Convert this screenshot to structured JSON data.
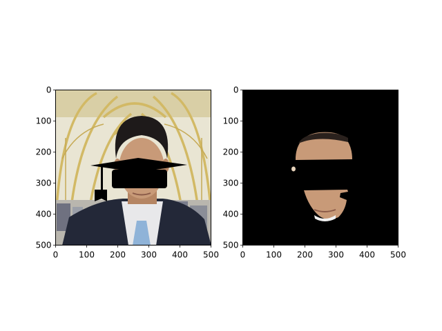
{
  "chart_data": [
    {
      "type": "image",
      "panel": "left",
      "content": "portrait of a man in a dark suit with a black graduation cap overlaid covering his eyes",
      "xlim": [
        0,
        500
      ],
      "ylim": [
        500,
        0
      ],
      "xticks": [
        0,
        100,
        200,
        300,
        400,
        500
      ],
      "yticks": [
        0,
        100,
        200,
        300,
        400,
        500
      ],
      "xtick_labels": [
        "0",
        "100",
        "200",
        "300",
        "400",
        "500"
      ],
      "ytick_labels": [
        "0",
        "100",
        "200",
        "300",
        "400",
        "500"
      ],
      "title": "",
      "xlabel": "",
      "ylabel": ""
    },
    {
      "type": "image",
      "panel": "right",
      "content": "segmented face region on black background with black band removed across eyes",
      "xlim": [
        0,
        500
      ],
      "ylim": [
        500,
        0
      ],
      "xticks": [
        0,
        100,
        200,
        300,
        400,
        500
      ],
      "yticks": [
        0,
        100,
        200,
        300,
        400,
        500
      ],
      "xtick_labels": [
        "0",
        "100",
        "200",
        "300",
        "400",
        "500"
      ],
      "ytick_labels": [
        "0",
        "100",
        "200",
        "300",
        "400",
        "500"
      ],
      "title": "",
      "xlabel": "",
      "ylabel": ""
    }
  ],
  "colors": {
    "background": "#ffffff",
    "axis": "#000000",
    "mask_background": "#000000",
    "skin": "#c89a78",
    "suit": "#232838",
    "shirt": "#e8e8ea",
    "tie": "#8fb3d8",
    "arches": "#d6bf72",
    "backdrop": "#eae6d2"
  }
}
